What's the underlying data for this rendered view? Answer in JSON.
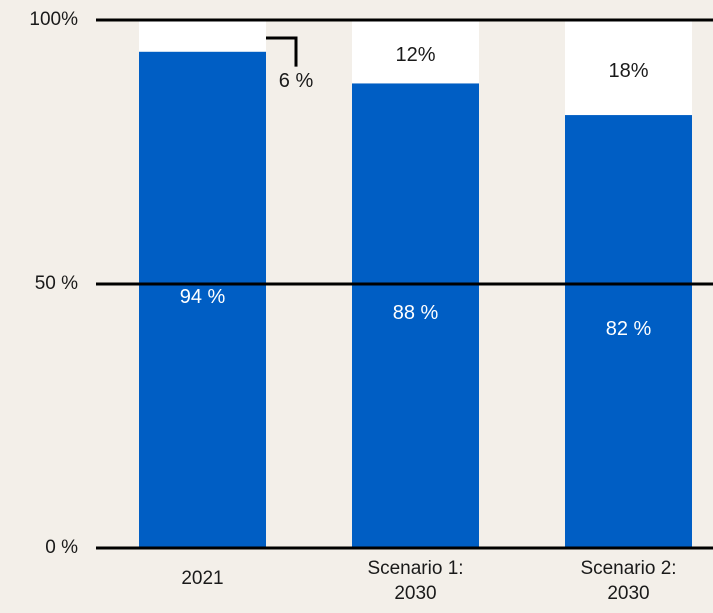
{
  "chart_data": {
    "type": "bar",
    "stacked": true,
    "categories": [
      [
        "2021"
      ],
      [
        "Scenario 1:",
        "2030"
      ],
      [
        "Scenario 2:",
        "2030"
      ]
    ],
    "series": [
      {
        "values": [
          94,
          88,
          82
        ],
        "labels": [
          "94 %",
          "88 %",
          "82 %"
        ],
        "color": "#005ec4"
      },
      {
        "values": [
          6,
          12,
          18
        ],
        "labels": [
          "6 %",
          "12%",
          "18%"
        ],
        "color": "#ffffff"
      }
    ],
    "yticks": [
      {
        "value": 0,
        "label": "0 %"
      },
      {
        "value": 50,
        "label": "50 %"
      },
      {
        "value": 100,
        "label": "100%"
      }
    ],
    "ylim": [
      0,
      100
    ],
    "grid": true,
    "colors": {
      "background": "#f3efe9",
      "axis": "#000000",
      "text": "#1a1a1a",
      "bar_label": "#ffffff"
    }
  }
}
